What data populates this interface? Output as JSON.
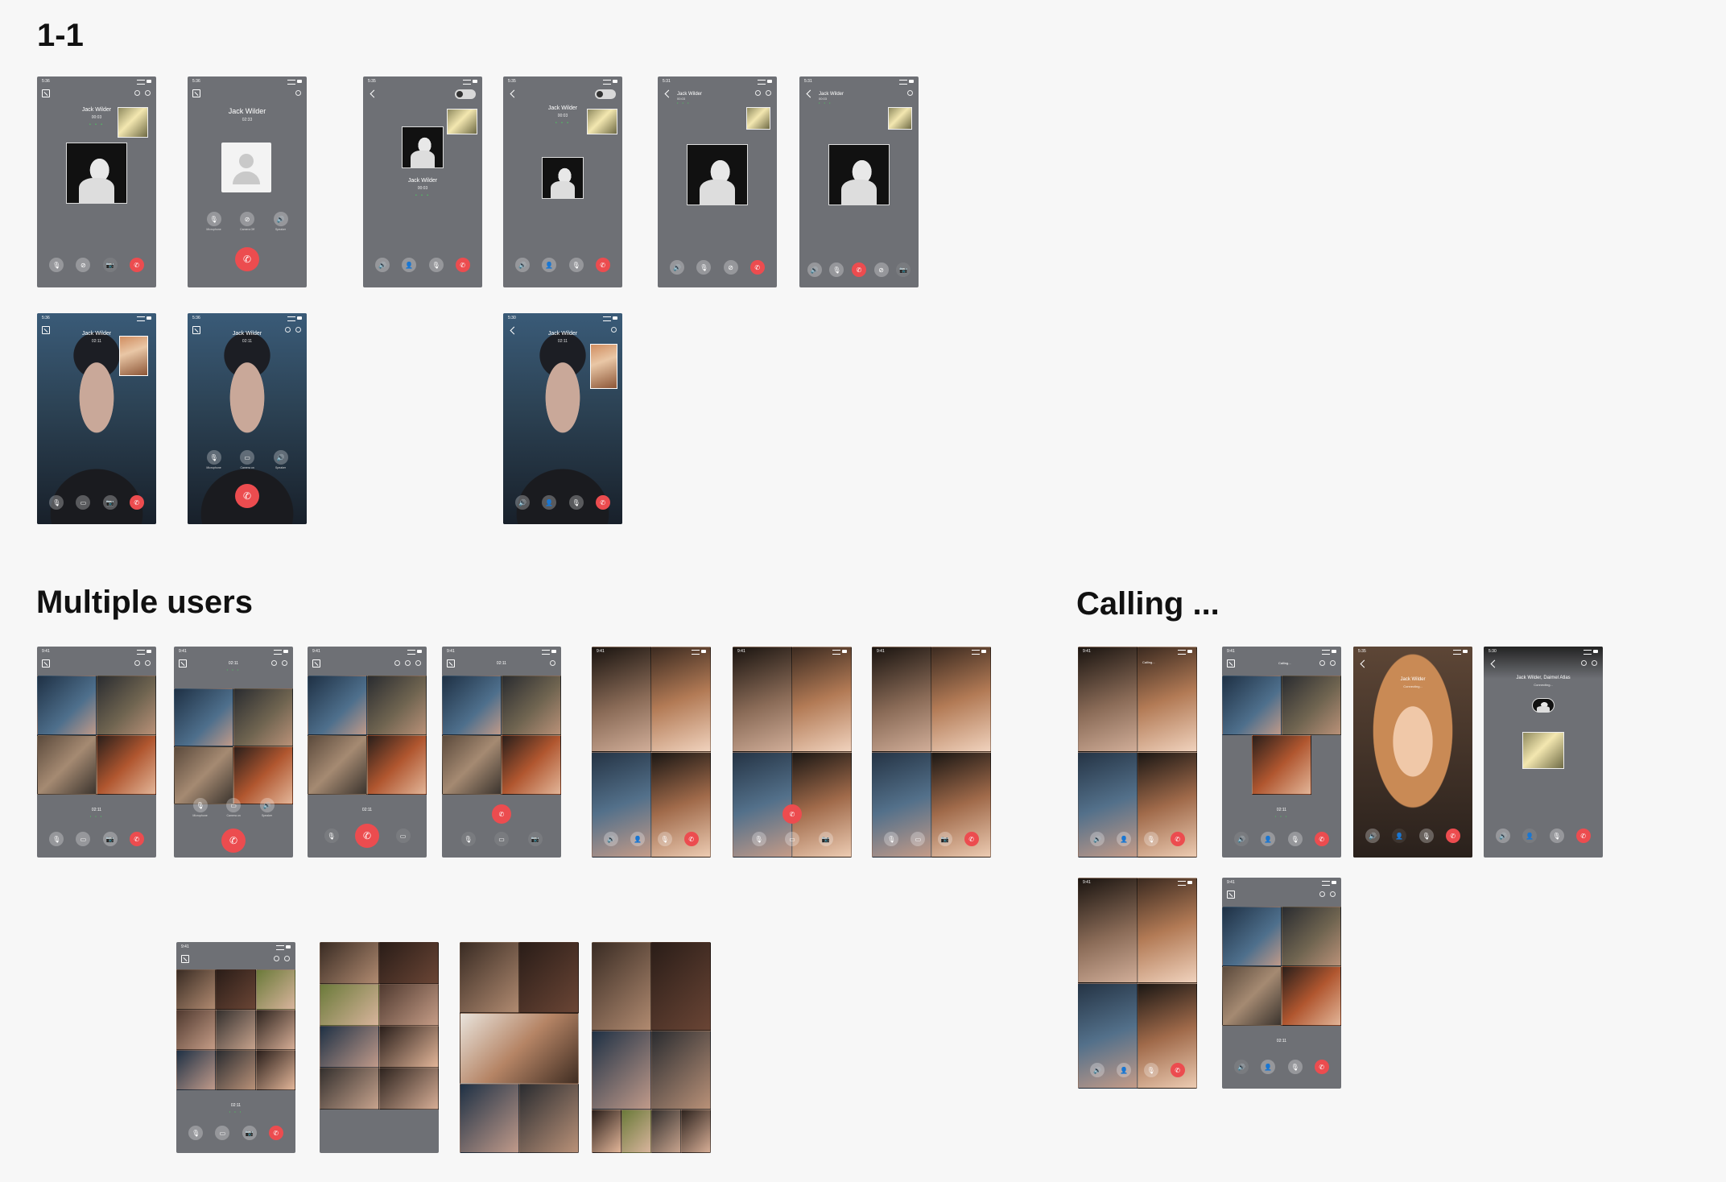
{
  "sections": {
    "one_to_one": "1-1",
    "multiple_users": "Multiple users",
    "calling": "Calling ..."
  },
  "status": {
    "t1": "5:36",
    "t2": "9:41",
    "t3": "5:35",
    "t4": "5:31",
    "t5": "5:30"
  },
  "caller": {
    "name": "Jack Wilder",
    "time_a": "00:03",
    "time_b": "02:33",
    "time_c": "00:03",
    "time_d": "02:11",
    "dots": "• • •"
  },
  "labels": {
    "microphone": "Microphone",
    "camera_off": "Camera Off",
    "camera_on": "Camera on",
    "speaker": "Speaker"
  },
  "group": {
    "time": "02:11",
    "calling_text": "Calling...",
    "multi_names": "Jack Wilder, Daimel Atlas",
    "connecting": "Connecting..."
  },
  "icons": {
    "mic": "🎙",
    "camera": "📷",
    "video": "▭",
    "speaker": "🔊",
    "add_user": "👤",
    "end": "✆",
    "camera_off": "⊘"
  },
  "colors": {
    "end_call": "#ec4c4f",
    "phone_bg": "#6e7075",
    "status_green": "#48d35c"
  }
}
